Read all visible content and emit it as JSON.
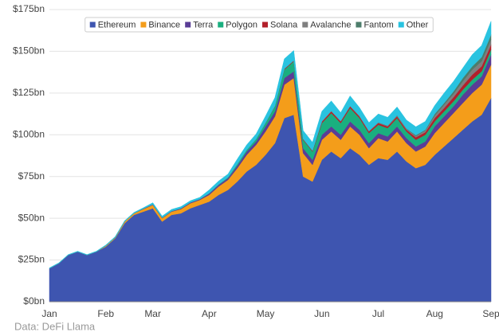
{
  "chart_data": {
    "type": "stacked_area",
    "source": "Data: DeFi Llama",
    "categories": [
      "Jan",
      null,
      null,
      null,
      null,
      null,
      "Feb",
      null,
      null,
      null,
      null,
      "Mar",
      null,
      null,
      null,
      null,
      null,
      "Apr",
      null,
      null,
      null,
      null,
      null,
      "May",
      null,
      null,
      null,
      null,
      null,
      "Jun",
      null,
      null,
      null,
      null,
      null,
      "Jul",
      null,
      null,
      null,
      null,
      null,
      "Aug",
      null,
      null,
      null,
      null,
      null,
      "Sep"
    ],
    "series": [
      {
        "name": "Ethereum",
        "color": "#3e55b0",
        "values": [
          20,
          23,
          28,
          30,
          28,
          30,
          33,
          38,
          47,
          52,
          54,
          56,
          48,
          52,
          53,
          56,
          58,
          60,
          64,
          67,
          72,
          78,
          82,
          88,
          95,
          110,
          112,
          75,
          72,
          85,
          90,
          86,
          92,
          88,
          82,
          86,
          85,
          90,
          84,
          80,
          82,
          88,
          93,
          98,
          103,
          108,
          112,
          122
        ]
      },
      {
        "name": "Binance",
        "color": "#f49d1a",
        "values": [
          0,
          0,
          0,
          0,
          0,
          0,
          0.5,
          0.5,
          1,
          1,
          1.5,
          2,
          2,
          2,
          2.5,
          3,
          3,
          4,
          5,
          6,
          8,
          10,
          12,
          14,
          16,
          20,
          22,
          14,
          10,
          12,
          12,
          11,
          13,
          12,
          10,
          12,
          11,
          12,
          11,
          10,
          11,
          13,
          14,
          15,
          16,
          17,
          18,
          20
        ]
      },
      {
        "name": "Terra",
        "color": "#5a3d96",
        "values": [
          0,
          0,
          0,
          0,
          0,
          0,
          0,
          0,
          0,
          0,
          0.3,
          0.3,
          0.3,
          0.3,
          0.5,
          0.5,
          0.5,
          0.8,
          1,
          1,
          1.5,
          2,
          2,
          3,
          3,
          4,
          4,
          3,
          3,
          3,
          3,
          3,
          3,
          3,
          3,
          3,
          3,
          3,
          3,
          3,
          3,
          4,
          4,
          4,
          5,
          5,
          5,
          6
        ]
      },
      {
        "name": "Polygon",
        "color": "#1aaf7f",
        "values": [
          0,
          0,
          0,
          0,
          0,
          0,
          0,
          0,
          0,
          0,
          0,
          0,
          0,
          0,
          0,
          0,
          0,
          0.2,
          0.3,
          0.5,
          1,
          1,
          1.5,
          2,
          3,
          5,
          6,
          5,
          5,
          7,
          8,
          7,
          8,
          7,
          6,
          5,
          5,
          5,
          4,
          4,
          4,
          3,
          3,
          3,
          3,
          3,
          3,
          3
        ]
      },
      {
        "name": "Solana",
        "color": "#b3202b",
        "values": [
          0,
          0,
          0,
          0,
          0,
          0,
          0,
          0,
          0,
          0,
          0,
          0,
          0,
          0,
          0,
          0,
          0,
          0,
          0,
          0,
          0,
          0,
          0,
          0.2,
          0.3,
          0.5,
          0.5,
          0.5,
          0.5,
          0.8,
          1,
          1,
          1,
          1,
          1,
          1,
          1,
          1,
          1,
          1.5,
          1.5,
          2,
          2,
          2.5,
          2.5,
          3,
          3,
          3
        ]
      },
      {
        "name": "Avalanche",
        "color": "#7f7f7f",
        "values": [
          0,
          0,
          0,
          0,
          0,
          0,
          0,
          0,
          0,
          0,
          0,
          0,
          0,
          0,
          0,
          0,
          0,
          0,
          0,
          0,
          0,
          0,
          0,
          0,
          0,
          0,
          0,
          0,
          0,
          0.3,
          0.3,
          0.3,
          0.3,
          0.3,
          0.3,
          0.3,
          0.3,
          0.5,
          0.5,
          0.8,
          1,
          1.5,
          2,
          2,
          2.5,
          3,
          3,
          3
        ]
      },
      {
        "name": "Fantom",
        "color": "#4d7d6b",
        "values": [
          0,
          0,
          0,
          0,
          0,
          0,
          0,
          0,
          0,
          0,
          0,
          0,
          0,
          0,
          0,
          0,
          0,
          0,
          0,
          0,
          0,
          0,
          0,
          0,
          0,
          0,
          0,
          0,
          0,
          0,
          0,
          0,
          0,
          0,
          0,
          0.2,
          0.2,
          0.2,
          0.3,
          0.5,
          0.5,
          1,
          1,
          1.5,
          2,
          2,
          2.5,
          3
        ]
      },
      {
        "name": "Other",
        "color": "#29c3e0",
        "values": [
          0.3,
          0.3,
          0.3,
          0.3,
          0.3,
          0.3,
          0.5,
          0.5,
          0.5,
          0.5,
          0.5,
          1,
          1,
          1,
          1,
          1,
          1,
          2,
          2,
          2,
          3,
          3,
          3,
          4,
          5,
          6,
          6,
          5,
          5,
          6,
          6,
          5,
          6,
          5,
          5,
          5,
          5,
          5,
          5,
          5,
          5,
          5,
          6,
          6,
          6,
          7,
          7,
          8
        ]
      }
    ],
    "ylim": [
      0,
      175
    ],
    "yticks": [
      {
        "value": 0,
        "label": "$0bn"
      },
      {
        "value": 25,
        "label": "$25bn"
      },
      {
        "value": 50,
        "label": "$50bn"
      },
      {
        "value": 75,
        "label": "$75bn"
      },
      {
        "value": 100,
        "label": "$100bn"
      },
      {
        "value": 125,
        "label": "$125bn"
      },
      {
        "value": 150,
        "label": "$150bn"
      },
      {
        "value": 175,
        "label": "$175bn"
      }
    ],
    "grid": true,
    "legend": "top"
  }
}
